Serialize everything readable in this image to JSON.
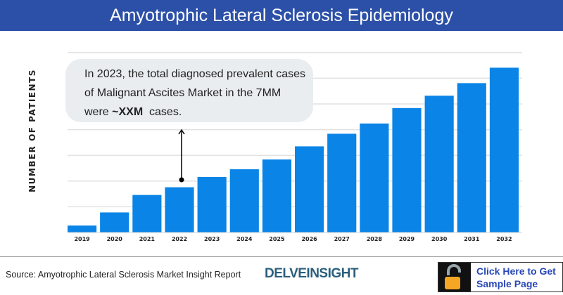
{
  "header": {
    "title": "Amyotrophic Lateral Sclerosis Epidemiology"
  },
  "chart_data": {
    "type": "bar",
    "title": "Amyotrophic Lateral Sclerosis Epidemiology",
    "ylabel": "NUMBER OF PATIENTS",
    "xlabel": "",
    "categories": [
      "2019",
      "2020",
      "2021",
      "2022",
      "2023",
      "2024",
      "2025",
      "2026",
      "2027",
      "2028",
      "2029",
      "2030",
      "2031",
      "2032"
    ],
    "values": [
      0.27,
      0.78,
      1.46,
      1.76,
      2.16,
      2.46,
      2.84,
      3.35,
      3.84,
      4.24,
      4.84,
      5.32,
      5.81,
      6.41
    ],
    "ylim": [
      0,
      7
    ],
    "grid": true,
    "y_tick_labels_shown": false,
    "bar_color": "#0a84e6",
    "annotation": {
      "line1": "In 2023, the total diagnosed prevalent cases",
      "line2": "of Malignant Ascites Market in the 7MM",
      "line3_pre": "were ",
      "line3_bold": "~XXM",
      "line3_post": "  cases.",
      "points_to": "2022"
    }
  },
  "footer": {
    "source": "Source: Amyotrophic Lateral Sclerosis Market Insight Report",
    "logo": "DELVEINSIGHT",
    "cta_line1": "Click Here to Get",
    "cta_line2": "Sample Page",
    "lock_icon": "unlocked-padlock-icon"
  }
}
